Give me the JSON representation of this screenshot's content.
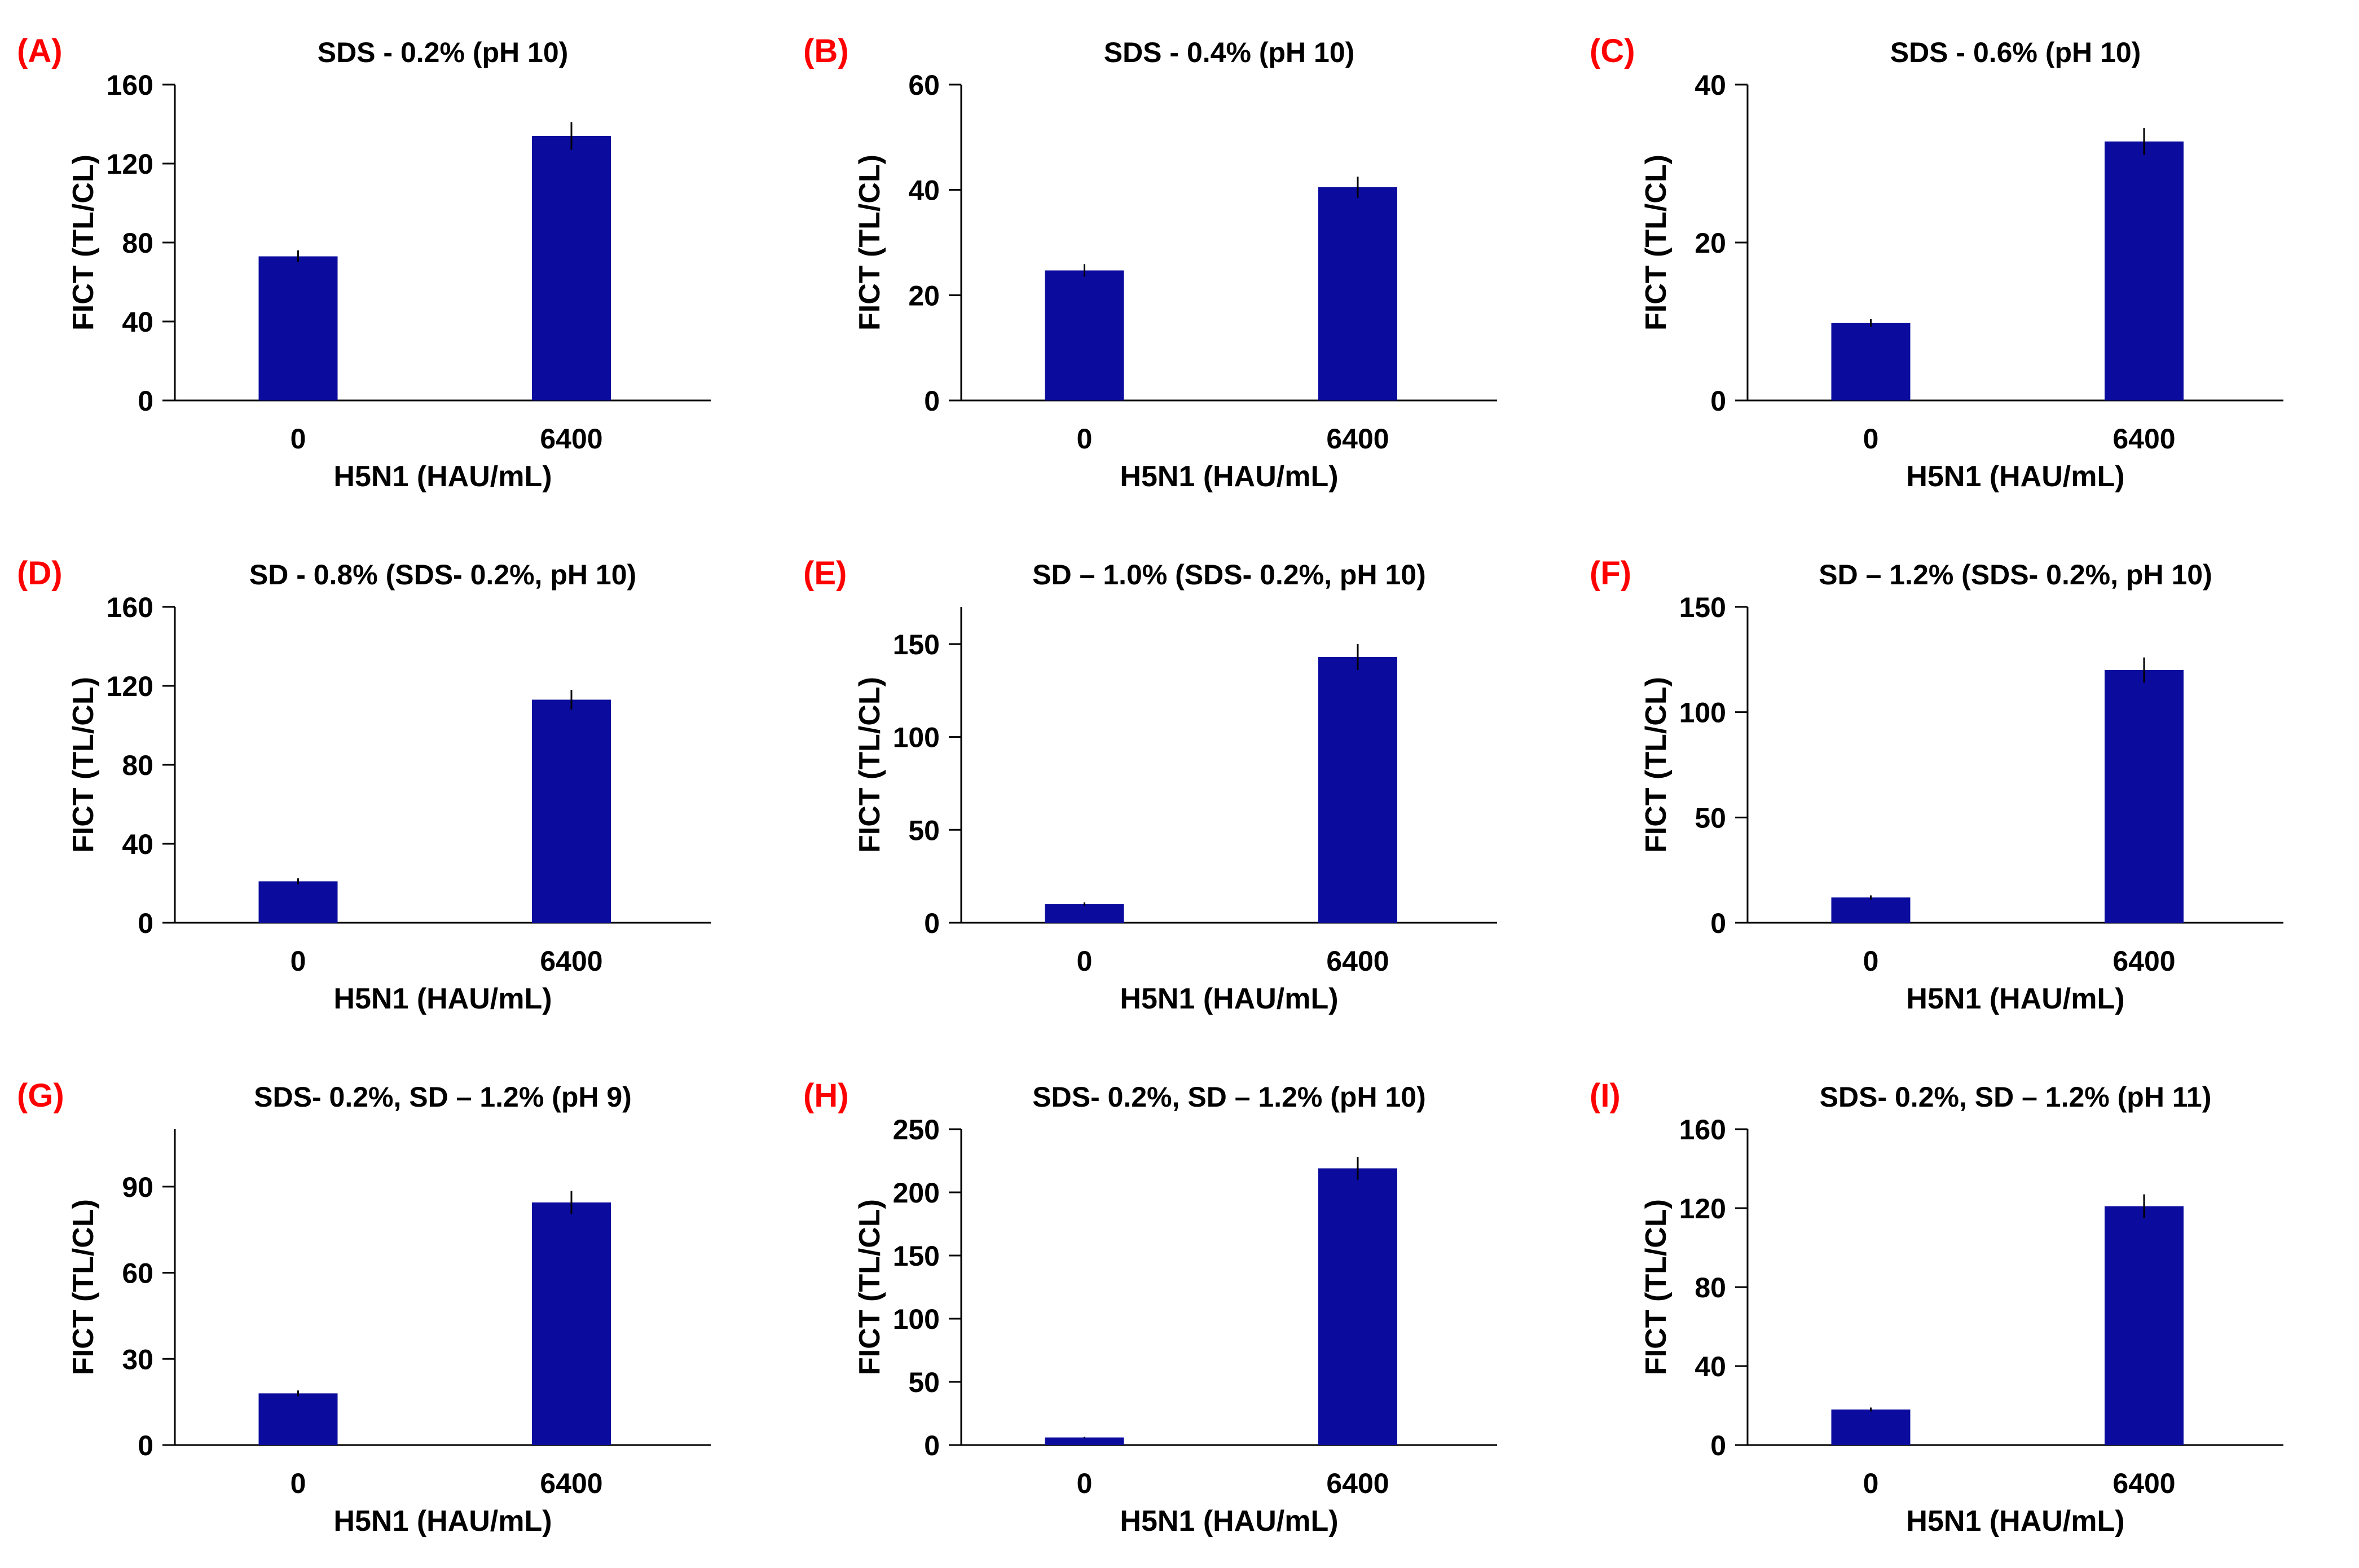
{
  "chart_data": [
    {
      "panel_label": "(A)",
      "type": "bar",
      "title": "SDS - 0.2% (pH 10)",
      "xlabel": "H5N1 (HAU/mL)",
      "ylabel": "FICT (TL/CL)",
      "categories": [
        "0",
        "6400"
      ],
      "values": [
        73,
        134
      ],
      "errors": [
        3,
        7
      ],
      "ylim": [
        0,
        160
      ],
      "yticks": [
        0,
        40,
        80,
        120,
        160
      ],
      "bar_color": "#0b0c9e"
    },
    {
      "panel_label": "(B)",
      "type": "bar",
      "title": "SDS - 0.4% (pH 10)",
      "xlabel": "H5N1 (HAU/mL)",
      "ylabel": "FICT (TL/CL)",
      "categories": [
        "0",
        "6400"
      ],
      "values": [
        24.7,
        40.5
      ],
      "errors": [
        1.2,
        2
      ],
      "ylim": [
        0,
        60
      ],
      "yticks": [
        0,
        20,
        40,
        60
      ],
      "bar_color": "#0b0c9e"
    },
    {
      "panel_label": "(C)",
      "type": "bar",
      "title": "SDS - 0.6% (pH 10)",
      "xlabel": "H5N1 (HAU/mL)",
      "ylabel": "FICT (TL/CL)",
      "categories": [
        "0",
        "6400"
      ],
      "values": [
        9.8,
        32.8
      ],
      "errors": [
        0.5,
        1.7
      ],
      "ylim": [
        0,
        40
      ],
      "yticks": [
        0,
        20,
        40
      ],
      "bar_color": "#0b0c9e"
    },
    {
      "panel_label": "(D)",
      "type": "bar",
      "title": "SD - 0.8% (SDS- 0.2%, pH 10)",
      "xlabel": "H5N1 (HAU/mL)",
      "ylabel": "FICT (TL/CL)",
      "categories": [
        "0",
        "6400"
      ],
      "values": [
        21,
        113
      ],
      "errors": [
        1.5,
        5
      ],
      "ylim": [
        0,
        160
      ],
      "yticks": [
        0,
        40,
        80,
        120,
        160
      ],
      "bar_color": "#0b0c9e"
    },
    {
      "panel_label": "(E)",
      "type": "bar",
      "title": "SD – 1.0% (SDS- 0.2%, pH 10)",
      "xlabel": "H5N1 (HAU/mL)",
      "ylabel": "FICT (TL/CL)",
      "categories": [
        "0",
        "6400"
      ],
      "values": [
        10,
        143
      ],
      "errors": [
        1,
        7
      ],
      "ylim": [
        0,
        170
      ],
      "yticks": [
        0,
        50,
        100,
        150
      ],
      "bar_color": "#0b0c9e"
    },
    {
      "panel_label": "(F)",
      "type": "bar",
      "title": "SD – 1.2% (SDS- 0.2%, pH 10)",
      "xlabel": "H5N1 (HAU/mL)",
      "ylabel": "FICT (TL/CL)",
      "categories": [
        "0",
        "6400"
      ],
      "values": [
        12,
        120
      ],
      "errors": [
        1,
        6
      ],
      "ylim": [
        0,
        150
      ],
      "yticks": [
        0,
        50,
        100,
        150
      ],
      "bar_color": "#0b0c9e"
    },
    {
      "panel_label": "(G)",
      "type": "bar",
      "title": "SDS- 0.2%, SD – 1.2% (pH 9)",
      "xlabel": "H5N1 (HAU/mL)",
      "ylabel": "FICT (TL/CL)",
      "categories": [
        "0",
        "6400"
      ],
      "values": [
        18,
        84.5
      ],
      "errors": [
        1,
        4
      ],
      "ylim": [
        0,
        110
      ],
      "yticks": [
        0,
        30,
        60,
        90
      ],
      "bar_color": "#0b0c9e"
    },
    {
      "panel_label": "(H)",
      "type": "bar",
      "title": "SDS- 0.2%, SD – 1.2% (pH 10)",
      "xlabel": "H5N1 (HAU/mL)",
      "ylabel": "FICT (TL/CL)",
      "categories": [
        "0",
        "6400"
      ],
      "values": [
        6,
        219
      ],
      "errors": [
        0.5,
        9
      ],
      "ylim": [
        0,
        250
      ],
      "yticks": [
        0,
        50,
        100,
        150,
        200,
        250
      ],
      "bar_color": "#0b0c9e"
    },
    {
      "panel_label": "(I)",
      "type": "bar",
      "title": "SDS- 0.2%, SD – 1.2% (pH 11)",
      "xlabel": "H5N1 (HAU/mL)",
      "ylabel": "FICT (TL/CL)",
      "categories": [
        "0",
        "6400"
      ],
      "values": [
        18,
        121
      ],
      "errors": [
        1,
        6
      ],
      "ylim": [
        0,
        160
      ],
      "yticks": [
        0,
        40,
        80,
        120,
        160
      ],
      "bar_color": "#0b0c9e"
    }
  ],
  "colors": {
    "panel_label": "#ff0000",
    "axis": "#000000",
    "text": "#000000"
  }
}
